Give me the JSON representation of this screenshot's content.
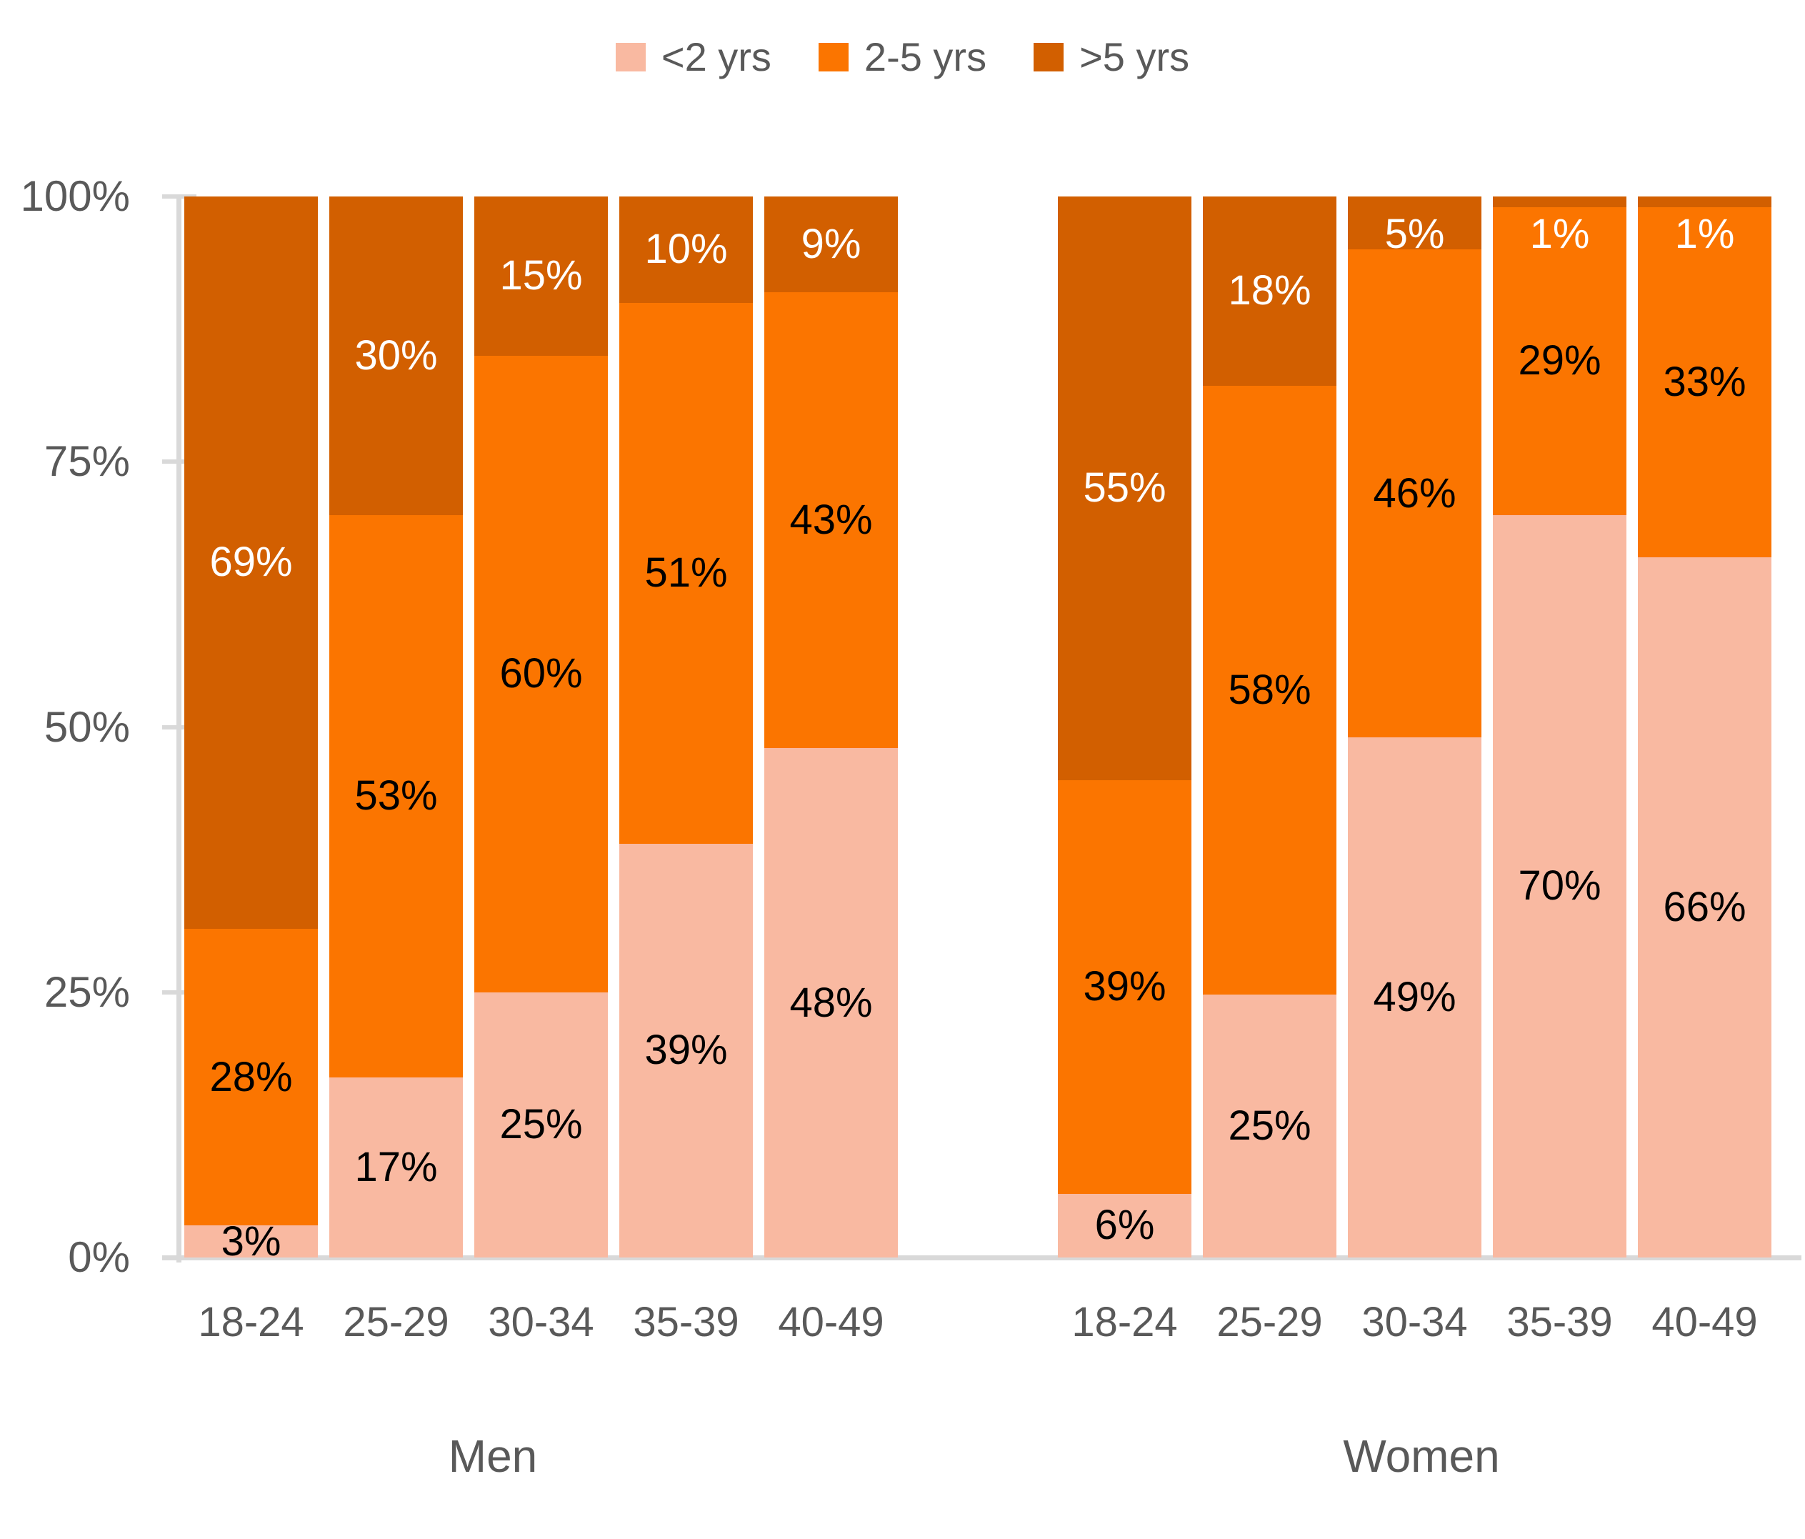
{
  "legend": [
    {
      "label": "<2 yrs",
      "color": "#F9B9A1"
    },
    {
      "label": "2-5 yrs",
      "color": "#FB7500"
    },
    {
      "label": ">5 yrs",
      "color": "#D25F00"
    }
  ],
  "colors": {
    "axis_line": "#D9D9D9",
    "axis_text": "#595959",
    "label_on_dark": "#FFFFFF",
    "label_on_light": "#000000"
  },
  "chart_data": {
    "type": "bar",
    "stacked": true,
    "unit": "%",
    "title": "",
    "xlabel": "",
    "ylabel": "",
    "legend_position": "top-center",
    "grid": false,
    "y_axis": {
      "range": [
        0,
        100
      ],
      "ticks": [
        {
          "value": 0,
          "label": "0%"
        },
        {
          "value": 25,
          "label": "25%"
        },
        {
          "value": 50,
          "label": "50%"
        },
        {
          "value": 75,
          "label": "75%"
        },
        {
          "value": 100,
          "label": "100%"
        }
      ]
    },
    "groups": [
      {
        "title": "Men",
        "categories": [
          "18-24",
          "25-29",
          "30-34",
          "35-39",
          "40-49"
        ],
        "series": [
          {
            "name": "<2 yrs",
            "values": [
              3,
              17,
              25,
              39,
              48
            ]
          },
          {
            "name": "2-5 yrs",
            "values": [
              28,
              53,
              60,
              51,
              43
            ]
          },
          {
            "name": ">5 yrs",
            "values": [
              69,
              30,
              15,
              10,
              9
            ]
          }
        ]
      },
      {
        "title": "Women",
        "categories": [
          "18-24",
          "25-29",
          "30-34",
          "35-39",
          "40-49"
        ],
        "series": [
          {
            "name": "<2 yrs",
            "values": [
              6,
              25,
              49,
              70,
              66
            ]
          },
          {
            "name": "2-5 yrs",
            "values": [
              39,
              58,
              46,
              29,
              33
            ]
          },
          {
            "name": ">5 yrs",
            "values": [
              55,
              18,
              5,
              1,
              1
            ]
          }
        ]
      }
    ],
    "data_labels": "all segments labeled with value + %"
  }
}
